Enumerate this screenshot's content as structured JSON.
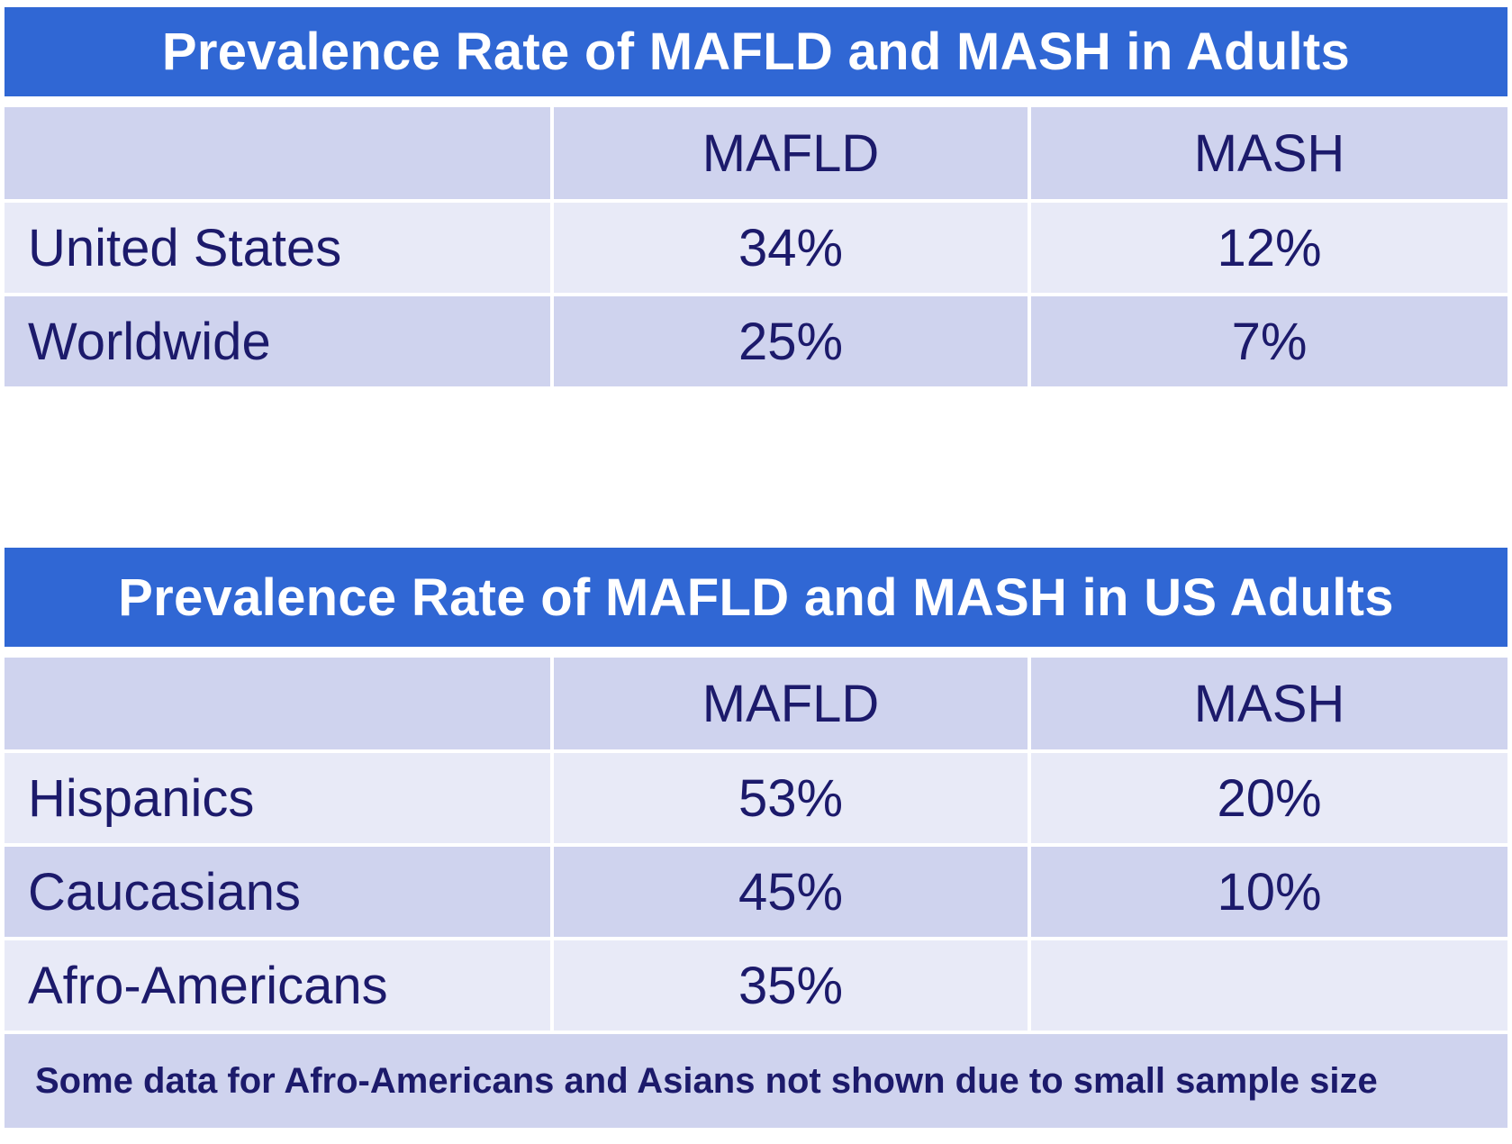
{
  "tables": [
    {
      "title": "Prevalence Rate of MAFLD and MASH in Adults",
      "columns": [
        "",
        "MAFLD",
        "MASH"
      ],
      "rows": [
        {
          "label": "United States",
          "mafld": "34%",
          "mash": "12%"
        },
        {
          "label": "Worldwide",
          "mafld": "25%",
          "mash": "7%"
        }
      ]
    },
    {
      "title": "Prevalence Rate of MAFLD and MASH in US Adults",
      "columns": [
        "",
        "MAFLD",
        "MASH"
      ],
      "rows": [
        {
          "label": "Hispanics",
          "mafld": "53%",
          "mash": "20%"
        },
        {
          "label": "Caucasians",
          "mafld": "45%",
          "mash": "10%"
        },
        {
          "label": "Afro-Americans",
          "mafld": "35%",
          "mash": ""
        }
      ],
      "footnote": "Some data for Afro-Americans and Asians not shown due to small sample size"
    }
  ],
  "colors": {
    "title_bar": "#3067d4",
    "row_dark": "#cfd3ee",
    "row_light": "#e8eaf7",
    "text": "#1c1a6b"
  }
}
